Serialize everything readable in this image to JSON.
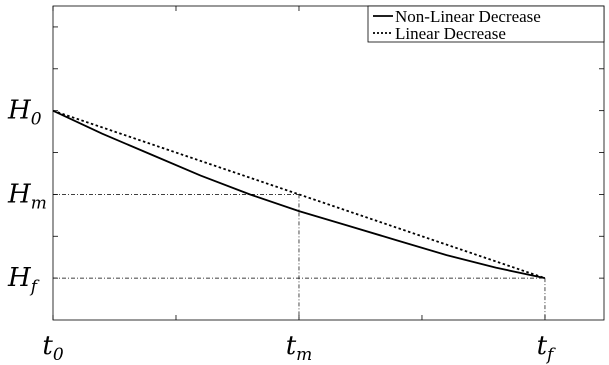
{
  "chart_data": {
    "type": "line",
    "title": "",
    "xlabel": "",
    "ylabel": "",
    "xlim": [
      0,
      1.12
    ],
    "ylim": [
      0,
      1.5
    ],
    "grid": false,
    "legend_position": "top-right",
    "x_ticks": [
      {
        "value": 0,
        "base": "t",
        "sub": "0"
      },
      {
        "value": 0.5,
        "base": "t",
        "sub": "m"
      },
      {
        "value": 1,
        "base": "t",
        "sub": "f"
      }
    ],
    "y_ticks": [
      {
        "value": 1.0,
        "base": "H",
        "sub": "0"
      },
      {
        "value": 0.6,
        "base": "H",
        "sub": "m"
      },
      {
        "value": 0.2,
        "base": "H",
        "sub": "f"
      }
    ],
    "reference_lines": {
      "x": [
        0.5,
        1.0
      ],
      "y": [
        0.6,
        0.2
      ]
    },
    "series": [
      {
        "name": "Non-Linear Decrease",
        "style": "solid",
        "x": [
          0,
          0.1,
          0.2,
          0.3,
          0.4,
          0.5,
          0.6,
          0.7,
          0.8,
          0.9,
          1.0
        ],
        "values": [
          1.0,
          0.89,
          0.79,
          0.69,
          0.6,
          0.52,
          0.45,
          0.38,
          0.31,
          0.25,
          0.2
        ]
      },
      {
        "name": "Linear Decrease",
        "style": "dotted",
        "x": [
          0,
          1.0
        ],
        "values": [
          1.0,
          0.2
        ]
      }
    ]
  }
}
